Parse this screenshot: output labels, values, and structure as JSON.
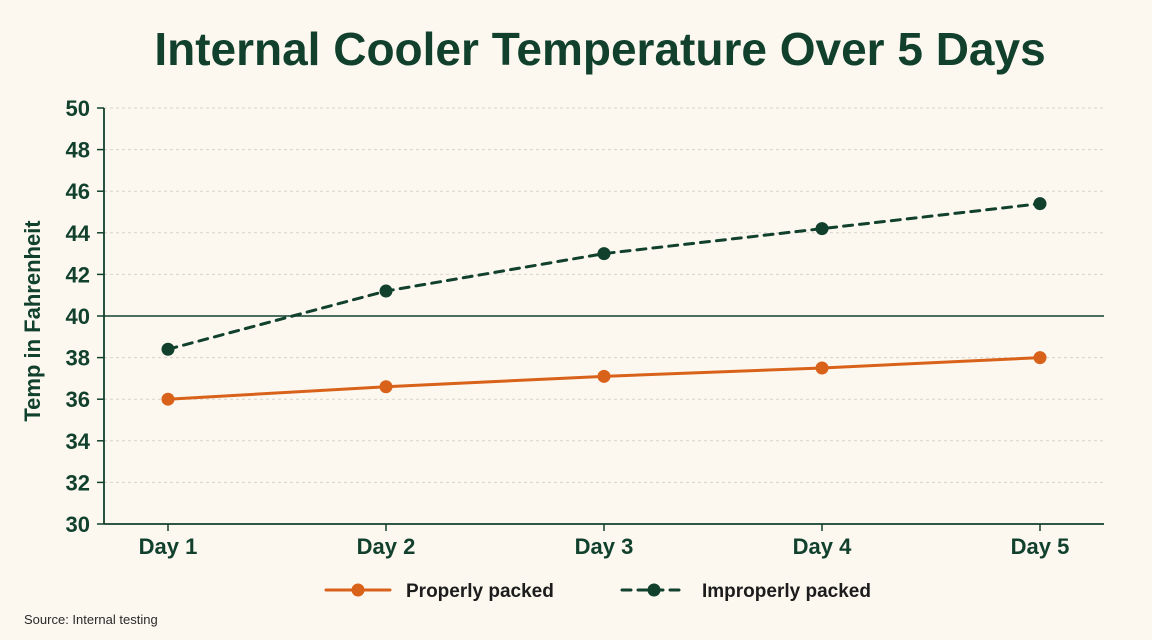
{
  "chart_data": {
    "type": "line",
    "title": "Internal Cooler Temperature Over 5 Days",
    "xlabel": "",
    "ylabel": "Temp in Fahrenheit",
    "categories": [
      "Day 1",
      "Day 2",
      "Day 3",
      "Day 4",
      "Day 5"
    ],
    "ylim": [
      30,
      50
    ],
    "yticks": [
      30,
      32,
      34,
      36,
      38,
      40,
      42,
      44,
      46,
      48,
      50
    ],
    "grid": true,
    "reference_line": {
      "y": 40,
      "color": "#11402d"
    },
    "series": [
      {
        "name": "Properly packed",
        "values": [
          36.0,
          36.6,
          37.1,
          37.5,
          38.0
        ],
        "color": "#d9621a",
        "line_style": "solid",
        "marker": "circle"
      },
      {
        "name": "Improperly packed",
        "values": [
          38.4,
          41.2,
          43.0,
          44.2,
          45.4
        ],
        "color": "#11402d",
        "line_style": "dashed",
        "marker": "circle"
      }
    ],
    "legend_position": "bottom-center",
    "source": "Source: Internal testing"
  },
  "colors": {
    "background": "#fcf8f0",
    "text": "#11402d",
    "grid": "#d6d3cc"
  }
}
